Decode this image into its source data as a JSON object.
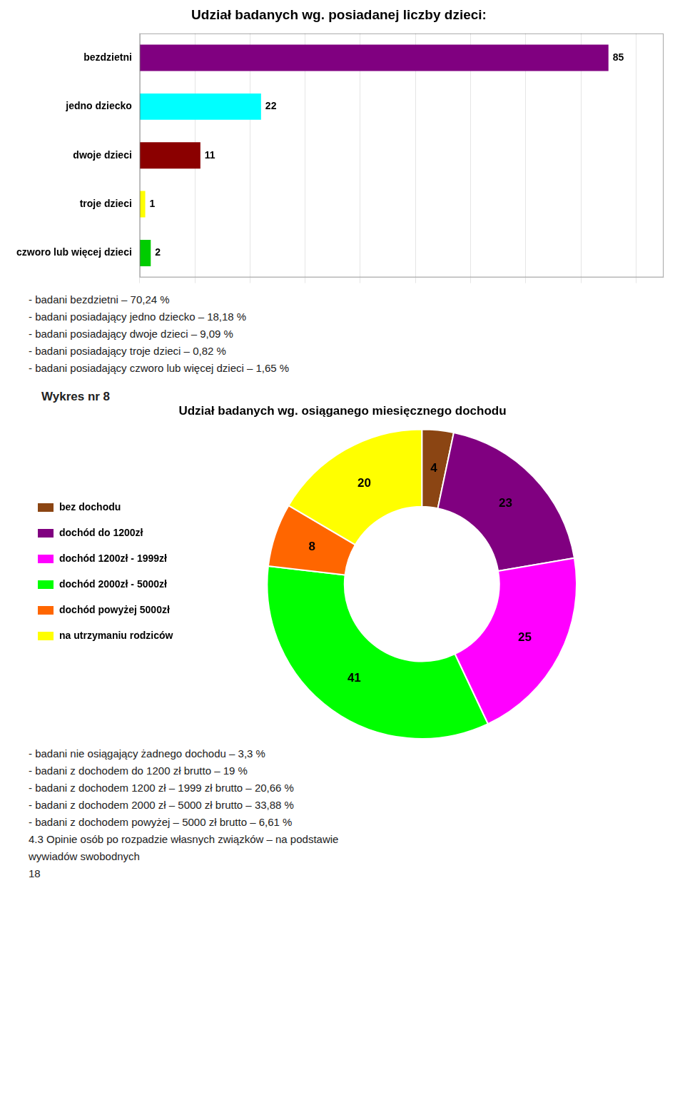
{
  "chart_data": [
    {
      "type": "bar",
      "orientation": "horizontal",
      "title": "Udział badanych wg. posiadanej liczby dzieci:",
      "categories": [
        "bezdzietni",
        "jedno dziecko",
        "dwoje dzieci",
        "troje dzieci",
        "czworo lub więcej dzieci"
      ],
      "values": [
        85,
        22,
        11,
        1,
        2
      ],
      "colors": [
        "#800080",
        "#00FFFF",
        "#8B0000",
        "#FFFF00",
        "#00CC00"
      ],
      "xlim": [
        0,
        95
      ],
      "xticks": [
        0,
        10,
        20,
        30,
        40,
        50,
        60,
        70,
        80,
        90
      ],
      "grid": true,
      "tick_labels": "y",
      "data_labels": true,
      "annotations": [
        "- badani bezdzietni – 70,24 %",
        "- badani posiadający jedno dziecko – 18,18 %",
        "- badani posiadający dwoje dzieci – 9,09 %",
        "- badani posiadający troje dzieci – 0,82 %",
        "- badani posiadający czworo lub więcej dzieci – 1,65 %"
      ]
    },
    {
      "type": "doughnut",
      "subtitle": "Wykres nr 8",
      "title": "Udział badanych wg. osiąganego miesięcznego dochodu",
      "categories": [
        "bez dochodu",
        "dochód do 1200zł",
        "dochód 1200zł - 1999zł",
        "dochód 2000zł - 5000zł",
        "dochód powyżej 5000zł",
        "na utrzymaniu rodziców"
      ],
      "values": [
        4,
        23,
        25,
        41,
        8,
        20
      ],
      "colors": [
        "#8B4513",
        "#800080",
        "#FF00FF",
        "#00FF00",
        "#FF6600",
        "#FFFF00"
      ],
      "legend": "left",
      "data_labels": true,
      "annotations": [
        "- badani nie osiągający żadnego dochodu – 3,3 %",
        "- badani z dochodem do 1200 zł brutto – 19 %",
        "- badani z dochodem 1200 zł – 1999 zł brutto – 20,66 %",
        "- badani z dochodem 2000 zł – 5000 zł brutto – 33,88 %",
        "- badani z dochodem powyżej – 5000 zł brutto – 6,61 %",
        "4.3 Opinie osób po rozpadzie własnych związków – na podstawie",
        "wywiadów swobodnych",
        "18"
      ]
    }
  ]
}
